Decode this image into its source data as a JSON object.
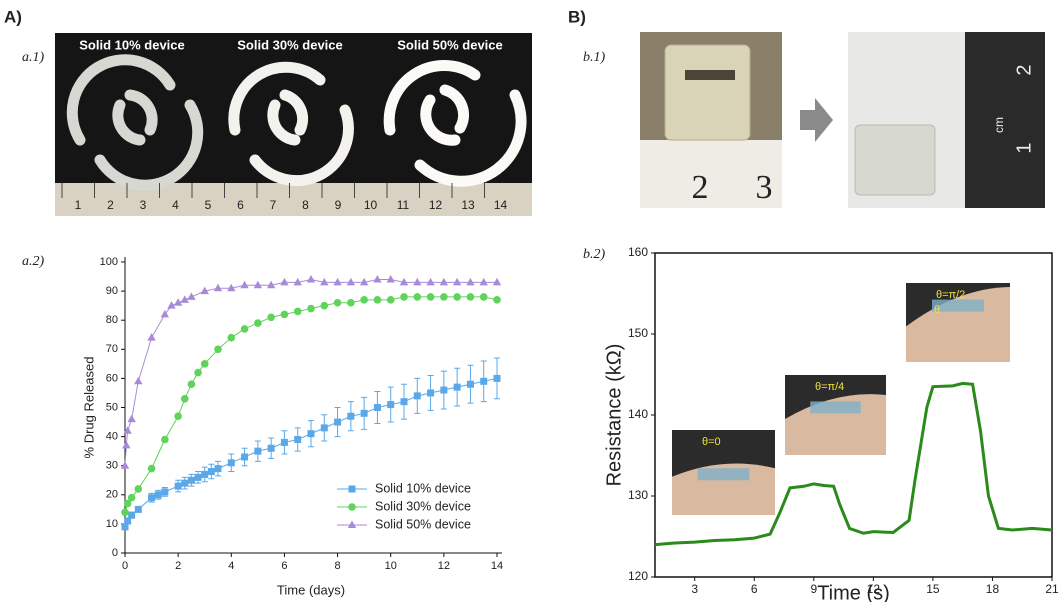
{
  "panels": {
    "A": "A)",
    "B": "B)",
    "a1": "a.1)",
    "a2": "a.2)",
    "b1": "b.1)",
    "b2": "b.2)"
  },
  "photo_a1": {
    "captions": [
      "Solid 10% device",
      "Solid 30% device",
      "Solid 50% device"
    ],
    "ruler_numbers": [
      "1",
      "2",
      "3",
      "4",
      "5",
      "6",
      "7",
      "8",
      "9",
      "10",
      "11",
      "12",
      "13",
      "14"
    ]
  },
  "photo_b1": {
    "ruler_left": [
      "2",
      "3"
    ],
    "ruler_right": [
      "1",
      "2"
    ],
    "unit": "cm"
  },
  "insets": [
    "θ=0",
    "θ=π/4",
    "θ=π/2",
    "θ"
  ],
  "chart_data": [
    {
      "type": "line",
      "xlabel": "Time (days)",
      "ylabel": "% Drug Released",
      "xlim": [
        0,
        14
      ],
      "ylim": [
        0,
        100
      ],
      "xticks": [
        0,
        2,
        4,
        6,
        8,
        10,
        12,
        14
      ],
      "yticks": [
        0,
        10,
        20,
        30,
        40,
        50,
        60,
        70,
        80,
        90,
        100
      ],
      "legend": "lower right",
      "series": [
        {
          "name": "Solid 10% device",
          "color": "#5aa8e8",
          "marker": "square",
          "x": [
            0,
            0.1,
            0.25,
            0.5,
            1,
            1.25,
            1.5,
            2,
            2.25,
            2.5,
            2.75,
            3,
            3.25,
            3.5,
            4,
            4.5,
            5,
            5.5,
            6,
            6.5,
            7,
            7.5,
            8,
            8.5,
            9,
            9.5,
            10,
            10.5,
            11,
            11.5,
            12,
            12.5,
            13,
            13.5,
            14
          ],
          "values": [
            9,
            11,
            13,
            15,
            19,
            20,
            21,
            23,
            24,
            25,
            26,
            27,
            28,
            29,
            31,
            33,
            35,
            36,
            38,
            39,
            41,
            43,
            45,
            47,
            48,
            50,
            51,
            52,
            54,
            55,
            56,
            57,
            58,
            59,
            60
          ],
          "errors": [
            1,
            1,
            1,
            1,
            1.5,
            1.5,
            1.5,
            2,
            2,
            2,
            2,
            2.5,
            2.5,
            2.5,
            3,
            3,
            3.5,
            3.5,
            4,
            4,
            4.5,
            4.5,
            5,
            5,
            5.5,
            5.5,
            6,
            6,
            6,
            6,
            6.5,
            6.5,
            6.5,
            7,
            7
          ]
        },
        {
          "name": "Solid 30% device",
          "color": "#5fd35a",
          "marker": "circle",
          "x": [
            0,
            0.1,
            0.25,
            0.5,
            1,
            1.5,
            2,
            2.25,
            2.5,
            2.75,
            3,
            3.5,
            4,
            4.5,
            5,
            5.5,
            6,
            6.5,
            7,
            7.5,
            8,
            8.5,
            9,
            9.5,
            10,
            10.5,
            11,
            11.5,
            12,
            12.5,
            13,
            13.5,
            14
          ],
          "values": [
            14,
            17,
            19,
            22,
            29,
            39,
            47,
            53,
            58,
            62,
            65,
            70,
            74,
            77,
            79,
            81,
            82,
            83,
            84,
            85,
            86,
            86,
            87,
            87,
            87,
            88,
            88,
            88,
            88,
            88,
            88,
            88,
            87
          ]
        },
        {
          "name": "Solid 50% device",
          "color": "#a98ad8",
          "marker": "triangle",
          "x": [
            0,
            0.05,
            0.1,
            0.25,
            0.5,
            1,
            1.5,
            1.75,
            2,
            2.25,
            2.5,
            3,
            3.5,
            4,
            4.5,
            5,
            5.5,
            6,
            6.5,
            7,
            7.5,
            8,
            8.5,
            9,
            9.5,
            10,
            10.5,
            11,
            11.5,
            12,
            12.5,
            13,
            13.5,
            14
          ],
          "values": [
            30,
            37,
            42,
            46,
            59,
            74,
            82,
            85,
            86,
            87,
            88,
            90,
            91,
            91,
            92,
            92,
            92,
            93,
            93,
            94,
            93,
            93,
            93,
            93,
            94,
            94,
            93,
            93,
            93,
            93,
            93,
            93,
            93,
            93
          ]
        }
      ]
    },
    {
      "type": "line",
      "xlabel": "Time (s)",
      "ylabel": "Resistance (kΩ)",
      "xlim": [
        1,
        21
      ],
      "ylim": [
        120,
        160
      ],
      "xticks": [
        3,
        6,
        9,
        12,
        15,
        18,
        21
      ],
      "yticks": [
        120,
        130,
        140,
        150,
        160
      ],
      "series": [
        {
          "color": "#2a8a1a",
          "x": [
            1,
            2,
            3,
            4,
            5,
            6,
            6.8,
            7.3,
            7.8,
            8.5,
            9,
            9.5,
            10,
            10.3,
            10.8,
            11.5,
            12,
            13,
            13.8,
            14.1,
            14.4,
            14.7,
            15,
            16,
            16.5,
            17,
            17.4,
            17.8,
            18.3,
            19,
            20,
            21
          ],
          "values": [
            124,
            124.2,
            124.3,
            124.5,
            124.6,
            124.8,
            125.3,
            128,
            131,
            131.2,
            131.5,
            131.3,
            131.2,
            129,
            126,
            125.4,
            125.6,
            125.5,
            127,
            132,
            136.5,
            141,
            143.5,
            143.6,
            143.9,
            143.8,
            138,
            130,
            126,
            125.8,
            126,
            125.8
          ]
        }
      ]
    }
  ]
}
